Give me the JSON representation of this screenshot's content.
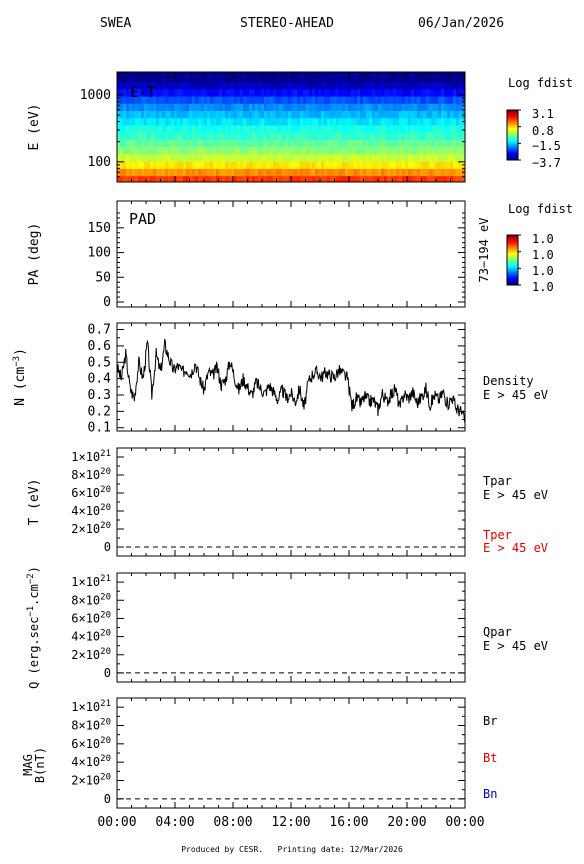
{
  "header": {
    "instrument": "SWEA",
    "spacecraft": "STEREO-AHEAD",
    "date": "06/Jan/2026"
  },
  "footer": {
    "produced_by": "Produced by CESR.",
    "printing_date": "Printing date: 12/Mar/2026"
  },
  "time_axis": [
    "00:00",
    "04:00",
    "08:00",
    "12:00",
    "16:00",
    "20:00",
    "00:00"
  ],
  "chart_data": [
    {
      "type": "heatmap",
      "id": "energy-time",
      "annotation": "E-T",
      "ylabel": "E (eV)",
      "yscale": "log",
      "ylim": [
        50,
        2200
      ],
      "yticks": [
        {
          "value": 100,
          "label": "100"
        },
        {
          "value": 1000,
          "label": "1000"
        }
      ],
      "energy_levels_eV": [
        55,
        70,
        90,
        115,
        150,
        190,
        245,
        315,
        400,
        515,
        660,
        845,
        1085,
        1390,
        1780
      ],
      "log_fdist_by_level": [
        1.9,
        1.3,
        0.7,
        0.2,
        -0.2,
        -0.5,
        -0.8,
        -1.0,
        -1.3,
        -1.6,
        -1.9,
        -2.3,
        -2.8,
        -3.3,
        -3.6
      ],
      "colorbar": {
        "title": "Log fdist",
        "range": [
          -3.7,
          3.1
        ],
        "tick_labels": [
          "3.1",
          "0.8",
          "−1.5",
          "−3.7"
        ]
      }
    },
    {
      "type": "heatmap",
      "id": "pitch-angle",
      "annotation": "PAD",
      "ylabel": "PA (deg)",
      "ylim": [
        0,
        180
      ],
      "yticks": [
        0,
        50,
        100,
        150
      ],
      "right_label": "73−194 eV",
      "colorbar": {
        "title": "Log fdist",
        "tick_labels": [
          "1.0",
          "1.0",
          "1.0",
          "1.0"
        ]
      }
    },
    {
      "type": "line",
      "id": "density",
      "ylabel": "N (cm",
      "ylabel_sup": "−3",
      "ylabel_end": ")",
      "ylim": [
        0.08,
        0.74
      ],
      "yticks": [
        0.1,
        0.2,
        0.3,
        0.4,
        0.5,
        0.6,
        0.7
      ],
      "ytick_labels": [
        "0.1",
        "0.2",
        "0.3",
        "0.4",
        "0.5",
        "0.6",
        "0.7"
      ],
      "series": [
        {
          "name": "Density",
          "subtitle": "E > 45 eV",
          "color": "#000000",
          "x_hours": [
            0.0,
            0.3,
            0.6,
            0.9,
            1.2,
            1.5,
            1.8,
            2.1,
            2.4,
            2.7,
            3.0,
            3.3,
            3.6,
            3.9,
            4.2,
            4.5,
            4.8,
            5.1,
            5.4,
            5.7,
            6.0,
            6.3,
            6.6,
            6.9,
            7.2,
            7.5,
            7.8,
            8.1,
            8.4,
            8.7,
            9.0,
            9.3,
            9.6,
            9.9,
            10.2,
            10.5,
            10.8,
            11.1,
            11.4,
            11.7,
            12.0,
            12.3,
            12.6,
            12.9,
            13.2,
            13.5,
            13.8,
            14.1,
            14.4,
            14.7,
            15.0,
            15.3,
            15.6,
            15.9,
            16.2,
            16.5,
            16.8,
            17.1,
            17.4,
            17.7,
            18.0,
            18.3,
            18.6,
            18.9,
            19.2,
            19.5,
            19.8,
            20.1,
            20.4,
            20.7,
            21.0,
            21.3,
            21.6,
            21.9,
            22.2,
            22.5,
            22.8,
            23.1,
            23.4,
            23.7,
            24.0
          ],
          "values": [
            0.47,
            0.4,
            0.55,
            0.34,
            0.28,
            0.5,
            0.4,
            0.62,
            0.3,
            0.55,
            0.44,
            0.61,
            0.52,
            0.45,
            0.48,
            0.44,
            0.46,
            0.43,
            0.5,
            0.4,
            0.33,
            0.44,
            0.42,
            0.47,
            0.36,
            0.4,
            0.51,
            0.41,
            0.33,
            0.4,
            0.35,
            0.3,
            0.38,
            0.34,
            0.31,
            0.36,
            0.32,
            0.27,
            0.33,
            0.28,
            0.31,
            0.26,
            0.34,
            0.22,
            0.38,
            0.43,
            0.44,
            0.41,
            0.44,
            0.42,
            0.41,
            0.45,
            0.43,
            0.4,
            0.23,
            0.28,
            0.25,
            0.29,
            0.26,
            0.27,
            0.21,
            0.31,
            0.26,
            0.3,
            0.34,
            0.22,
            0.31,
            0.28,
            0.32,
            0.25,
            0.29,
            0.34,
            0.24,
            0.3,
            0.27,
            0.32,
            0.24,
            0.29,
            0.22,
            0.2,
            0.15
          ]
        }
      ]
    },
    {
      "type": "line",
      "id": "temperature",
      "ylabel": "T (eV)",
      "ylim": [
        -1e+20,
        1.1e+21
      ],
      "yticks": [
        0,
        2e+20,
        4e+20,
        6e+20,
        8e+20,
        1e+21
      ],
      "ytick_labels": [
        {
          "m": "",
          "e": ""
        },
        {
          "m": "2",
          "e": "20"
        },
        {
          "m": "4",
          "e": "20"
        },
        {
          "m": "6",
          "e": "20"
        },
        {
          "m": "8",
          "e": "20"
        },
        {
          "m": "1",
          "e": "21"
        }
      ],
      "series": [
        {
          "name": "Tpar",
          "subtitle": "E > 45 eV",
          "color": "#000000",
          "values": [
            0,
            0
          ]
        },
        {
          "name": "Tper",
          "subtitle": "E > 45 eV",
          "color": "#e00000",
          "values": [
            0,
            0
          ]
        }
      ]
    },
    {
      "type": "line",
      "id": "heat-flux",
      "ylabel": "Q (erg.sec",
      "ylabel_sup": "−1",
      "ylabel_mid": ".cm",
      "ylabel_sup2": "−2",
      "ylabel_end": ")",
      "ylim": [
        -1e+20,
        1.1e+21
      ],
      "yticks": [
        0,
        2e+20,
        4e+20,
        6e+20,
        8e+20,
        1e+21
      ],
      "ytick_labels": [
        {
          "m": "",
          "e": ""
        },
        {
          "m": "2",
          "e": "20"
        },
        {
          "m": "4",
          "e": "20"
        },
        {
          "m": "6",
          "e": "20"
        },
        {
          "m": "8",
          "e": "20"
        },
        {
          "m": "1",
          "e": "21"
        }
      ],
      "series": [
        {
          "name": "Qpar",
          "subtitle": "E > 45 eV",
          "color": "#000000",
          "values": [
            0,
            0
          ]
        }
      ]
    },
    {
      "type": "line",
      "id": "magnetic-field",
      "ylabel": "MAG",
      "ylabel2": "B(nT)",
      "ylim": [
        -1e+20,
        1.1e+21
      ],
      "yticks": [
        0,
        2e+20,
        4e+20,
        6e+20,
        8e+20,
        1e+21
      ],
      "ytick_labels": [
        {
          "m": "",
          "e": ""
        },
        {
          "m": "2",
          "e": "20"
        },
        {
          "m": "4",
          "e": "20"
        },
        {
          "m": "6",
          "e": "20"
        },
        {
          "m": "8",
          "e": "20"
        },
        {
          "m": "1",
          "e": "21"
        }
      ],
      "series": [
        {
          "name": "Br",
          "color": "#000000",
          "values": [
            0,
            0
          ]
        },
        {
          "name": "Bt",
          "color": "#e00000"
        },
        {
          "name": "Bn",
          "color": "#0000c8"
        }
      ]
    }
  ]
}
